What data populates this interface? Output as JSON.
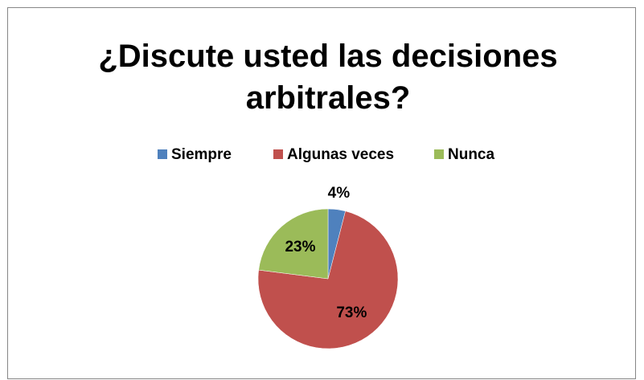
{
  "chart_data": {
    "type": "pie",
    "title": "¿Discute usted las decisiones arbitrales?",
    "categories": [
      "Siempre",
      "Algunas veces",
      "Nunca"
    ],
    "values": [
      4,
      73,
      23
    ],
    "value_labels": [
      "4%",
      "73%",
      "23%"
    ],
    "colors": [
      "#4f81bd",
      "#c0504d",
      "#9bbb59"
    ],
    "legend": "top"
  }
}
